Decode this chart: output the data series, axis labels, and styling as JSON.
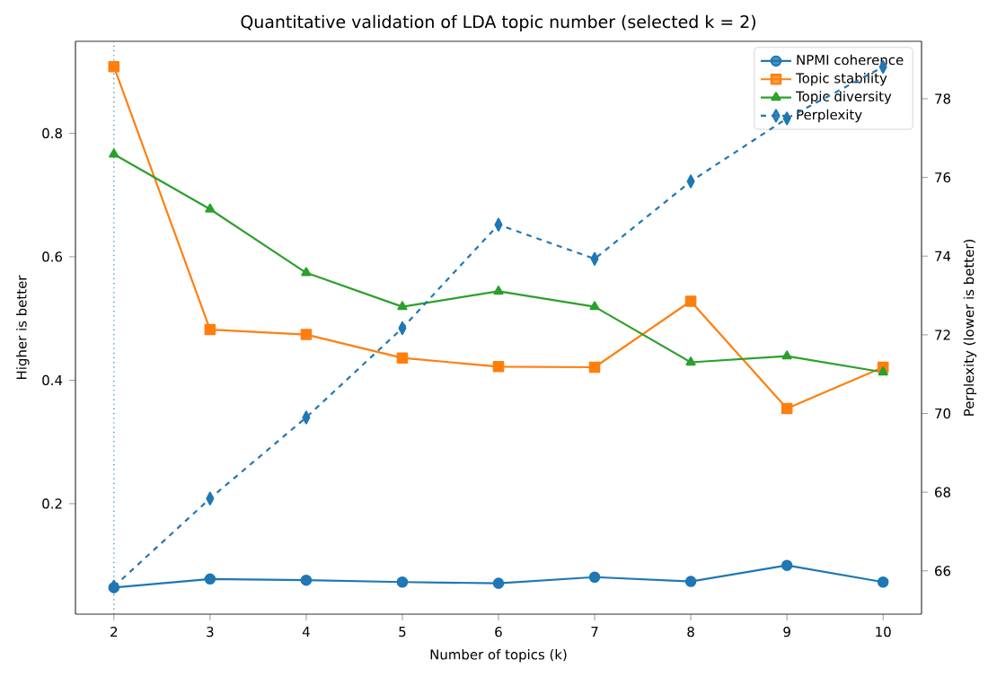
{
  "chart_data": {
    "type": "line",
    "title": "Quantitative validation of LDA topic number (selected k = 2)",
    "xlabel": "Number of topics (k)",
    "ylabel": "Higher is better",
    "y2label": "Perplexity (lower is better)",
    "x": [
      2,
      3,
      4,
      5,
      6,
      7,
      8,
      9,
      10
    ],
    "series": [
      {
        "name": "NPMI coherence",
        "color": "#1f77b4",
        "marker": "circle",
        "line_style": "solid",
        "values": [
          0.064,
          0.078,
          0.076,
          0.073,
          0.071,
          0.081,
          0.074,
          0.1,
          0.073
        ]
      },
      {
        "name": "Topic stability",
        "color": "#ff7f0e",
        "marker": "square",
        "line_style": "solid",
        "values": [
          0.908,
          0.482,
          0.474,
          0.436,
          0.422,
          0.421,
          0.528,
          0.354,
          0.421
        ]
      },
      {
        "name": "Topic diversity",
        "color": "#2ca02c",
        "marker": "triangle",
        "line_style": "solid",
        "values": [
          0.766,
          0.677,
          0.574,
          0.519,
          0.544,
          0.519,
          0.429,
          0.439,
          0.413
        ]
      },
      {
        "name": "Perplexity",
        "color": "#1f77b4",
        "marker": "diamond",
        "line_style": "dashed",
        "axis": "y2",
        "values": [
          65.6,
          67.84,
          69.9,
          72.17,
          74.8,
          73.93,
          75.9,
          77.5,
          78.81
        ]
      }
    ],
    "xlim": [
      1.6,
      10.4
    ],
    "xticks": [
      2,
      3,
      4,
      5,
      6,
      7,
      8,
      9,
      10
    ],
    "ylim": [
      0.021,
      0.949
    ],
    "yticks": [
      0.2,
      0.4,
      0.6,
      0.8
    ],
    "y2lim": [
      64.9,
      79.46
    ],
    "y2ticks": [
      66,
      68,
      70,
      72,
      74,
      76,
      78
    ],
    "ref_lines": [
      {
        "axis": "x",
        "value": 2,
        "color": "#1f77b4",
        "line_style": "dotted"
      }
    ],
    "legend": "top right",
    "grid": false
  }
}
